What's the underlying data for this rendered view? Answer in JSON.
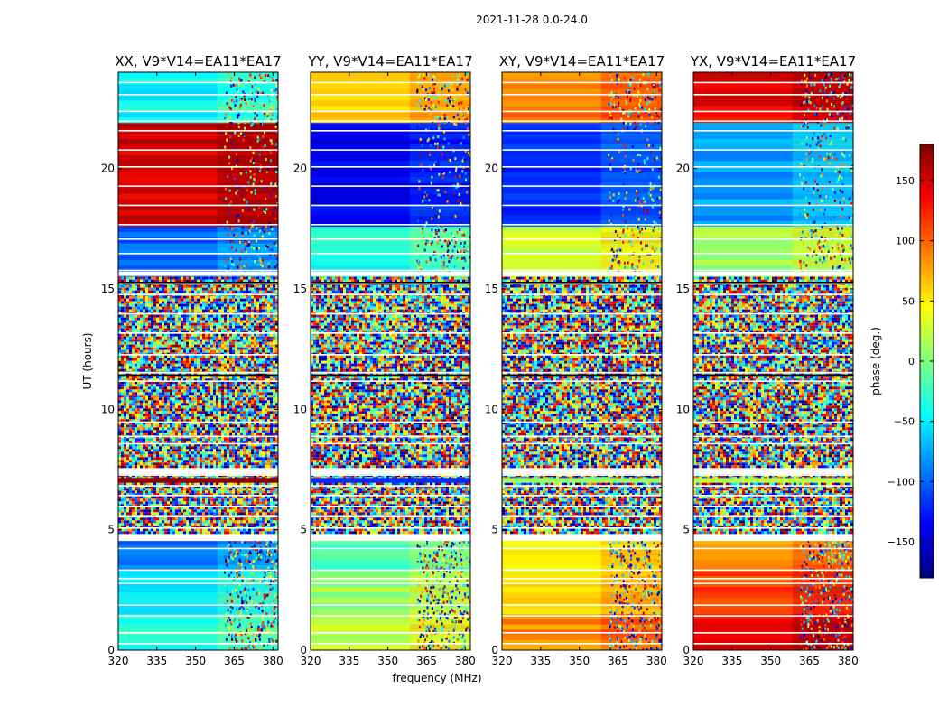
{
  "suptitle": "2021-11-28 0.0-24.0",
  "chart_data": {
    "type": "heatmap",
    "xlabel": "frequency (MHz)",
    "ylabel": "UT (hours)",
    "xlim": [
      320,
      382
    ],
    "ylim": [
      0,
      24
    ],
    "xticks": [
      320,
      335,
      350,
      365,
      380
    ],
    "yticks": [
      0,
      5,
      10,
      15,
      20
    ],
    "colorbar": {
      "label": "phase (deg.)",
      "range": [
        -180,
        180
      ],
      "ticks": [
        150,
        100,
        50,
        0,
        -50,
        -100,
        -150
      ],
      "tick_labels": [
        "150",
        "100",
        "50",
        "0",
        "−50",
        "−100",
        "−150"
      ],
      "colormap": [
        "#00007f",
        "#0000ff",
        "#007fff",
        "#00ffff",
        "#7fff7f",
        "#ffff00",
        "#ff7f00",
        "#ff0000",
        "#7f0000"
      ]
    },
    "noise_band_hours": [
      [
        4.9,
        7.3
      ],
      [
        7.6,
        11.5
      ],
      [
        11.5,
        15.5
      ]
    ],
    "rfi_start_mhz": 361,
    "panels": [
      {
        "title": "XX, V9*V14=EA11*EA17",
        "hour_bands": [
          {
            "from": 0.0,
            "to": 1.5,
            "phase": -35
          },
          {
            "from": 1.5,
            "to": 3.3,
            "phase": -55
          },
          {
            "from": 3.3,
            "to": 4.6,
            "phase": -95
          },
          {
            "from": 15.5,
            "to": 17.6,
            "phase": -100
          },
          {
            "from": 17.6,
            "to": 21.9,
            "phase": 150
          },
          {
            "from": 21.9,
            "to": 24.0,
            "phase": -45
          }
        ],
        "strip_phase": 175
      },
      {
        "title": "YY, V9*V14=EA11*EA17",
        "hour_bands": [
          {
            "from": 0.0,
            "to": 1.5,
            "phase": 20
          },
          {
            "from": 1.5,
            "to": 3.3,
            "phase": 10
          },
          {
            "from": 3.3,
            "to": 4.6,
            "phase": -20
          },
          {
            "from": 15.5,
            "to": 17.6,
            "phase": -35
          },
          {
            "from": 17.6,
            "to": 21.9,
            "phase": -140
          },
          {
            "from": 21.9,
            "to": 24.0,
            "phase": 60
          }
        ],
        "strip_phase": -120
      },
      {
        "title": "XY, V9*V14=EA11*EA17",
        "hour_bands": [
          {
            "from": 0.0,
            "to": 1.5,
            "phase": 85
          },
          {
            "from": 1.5,
            "to": 3.3,
            "phase": 60
          },
          {
            "from": 3.3,
            "to": 4.6,
            "phase": 45
          },
          {
            "from": 15.5,
            "to": 17.6,
            "phase": 30
          },
          {
            "from": 17.6,
            "to": 21.9,
            "phase": -120
          },
          {
            "from": 21.9,
            "to": 24.0,
            "phase": 90
          }
        ],
        "strip_phase": 10
      },
      {
        "title": "YX, V9*V14=EA11*EA17",
        "hour_bands": [
          {
            "from": 0.0,
            "to": 1.5,
            "phase": 140
          },
          {
            "from": 1.5,
            "to": 3.3,
            "phase": 110
          },
          {
            "from": 3.3,
            "to": 4.6,
            "phase": 80
          },
          {
            "from": 15.5,
            "to": 17.6,
            "phase": 10
          },
          {
            "from": 17.6,
            "to": 21.9,
            "phase": -80
          },
          {
            "from": 21.9,
            "to": 24.0,
            "phase": 140
          }
        ],
        "strip_phase": 20
      }
    ]
  }
}
